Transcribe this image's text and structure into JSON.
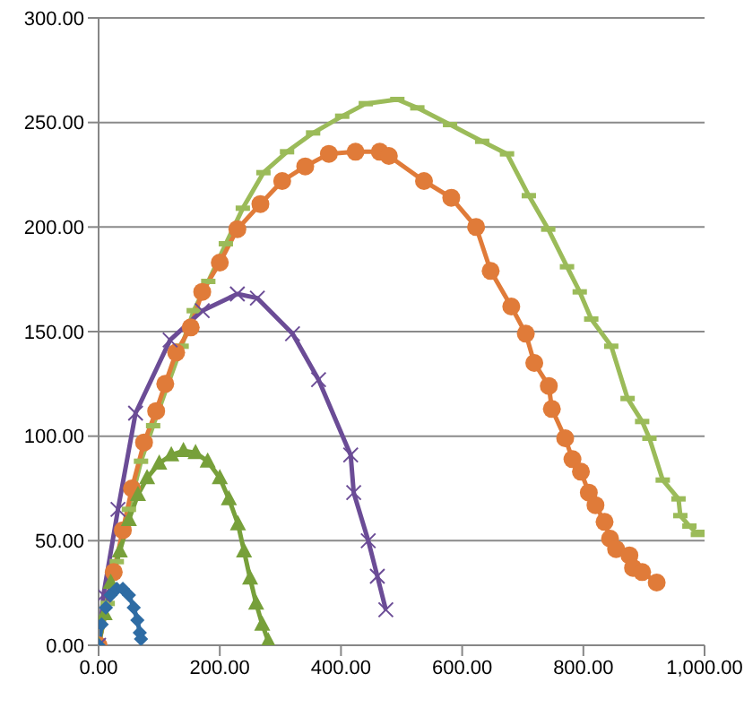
{
  "chart_data": {
    "type": "line",
    "grid": "y",
    "xlim": [
      0,
      1000
    ],
    "ylim": [
      0,
      300
    ],
    "xticks": [
      {
        "value": 0,
        "label": "0.00"
      },
      {
        "value": 200,
        "label": "200.00"
      },
      {
        "value": 400,
        "label": "400.00"
      },
      {
        "value": 600,
        "label": "600.00"
      },
      {
        "value": 800,
        "label": "800.00"
      },
      {
        "value": 1000,
        "label": "1,000.00"
      }
    ],
    "yticks": [
      {
        "value": 0,
        "label": "0.00"
      },
      {
        "value": 50,
        "label": "50.00"
      },
      {
        "value": 100,
        "label": "100.00"
      },
      {
        "value": 150,
        "label": "150.00"
      },
      {
        "value": 200,
        "label": "200.00"
      },
      {
        "value": 250,
        "label": "250.00"
      },
      {
        "value": 300,
        "label": "300.00"
      }
    ],
    "series": [
      {
        "color": "#2e6ca4",
        "marker": "diamond",
        "x": [
          0,
          5,
          12,
          20,
          30,
          40,
          50,
          58,
          64,
          68,
          70
        ],
        "values": [
          0,
          10,
          18,
          24,
          27,
          27,
          24,
          18,
          12,
          6,
          3
        ]
      },
      {
        "color": "#77a03a",
        "marker": "triangle",
        "x": [
          0,
          10,
          20,
          35,
          50,
          65,
          80,
          100,
          120,
          140,
          160,
          180,
          200,
          215,
          230,
          240,
          250,
          260,
          270,
          280
        ],
        "values": [
          0,
          15,
          30,
          45,
          60,
          72,
          80,
          87,
          91,
          93,
          92,
          88,
          80,
          70,
          58,
          45,
          32,
          20,
          10,
          2
        ]
      },
      {
        "color": "#6b4c96",
        "marker": "cross",
        "x": [
          0,
          8,
          32,
          61,
          118,
          171,
          229,
          262,
          320,
          363,
          416,
          421,
          445,
          460,
          474
        ],
        "values": [
          0,
          24,
          65,
          111,
          146,
          160,
          168,
          166,
          149,
          127,
          91,
          73,
          50,
          33,
          17
        ]
      },
      {
        "color": "#e07b39",
        "marker": "circle",
        "x": [
          0,
          25,
          40,
          55,
          75,
          95,
          110,
          128,
          152,
          171,
          200,
          229,
          267,
          303,
          341,
          380,
          424,
          464,
          479,
          537,
          582,
          623,
          647,
          681,
          705,
          719,
          743,
          748,
          770,
          782,
          796,
          809,
          820,
          835,
          844,
          854,
          876,
          882,
          897,
          921
        ],
        "values": [
          0,
          35,
          55,
          75,
          97,
          112,
          125,
          140,
          152,
          169,
          183,
          199,
          211,
          222,
          229,
          235,
          236,
          236,
          234,
          222,
          214,
          200,
          179,
          162,
          149,
          135,
          124,
          113,
          99,
          89,
          83,
          73,
          67,
          59,
          51,
          46,
          43,
          37,
          35,
          30
        ]
      },
      {
        "color": "#9bbb59",
        "marker": "square",
        "x": [
          0,
          15,
          30,
          50,
          70,
          90,
          137,
          157,
          181,
          210,
          238,
          272,
          311,
          354,
          402,
          441,
          493,
          526,
          580,
          633,
          674,
          710,
          742,
          773,
          794,
          813,
          846,
          873,
          897,
          909,
          931,
          957,
          960,
          975,
          989,
          998
        ],
        "values": [
          0,
          20,
          40,
          65,
          88,
          105,
          143,
          160,
          174,
          192,
          209,
          226,
          236,
          245,
          253,
          259,
          261,
          257,
          249,
          241,
          235,
          215,
          199,
          181,
          169,
          156,
          143,
          118,
          107,
          99,
          79,
          70,
          62,
          57,
          53,
          54
        ]
      }
    ]
  }
}
